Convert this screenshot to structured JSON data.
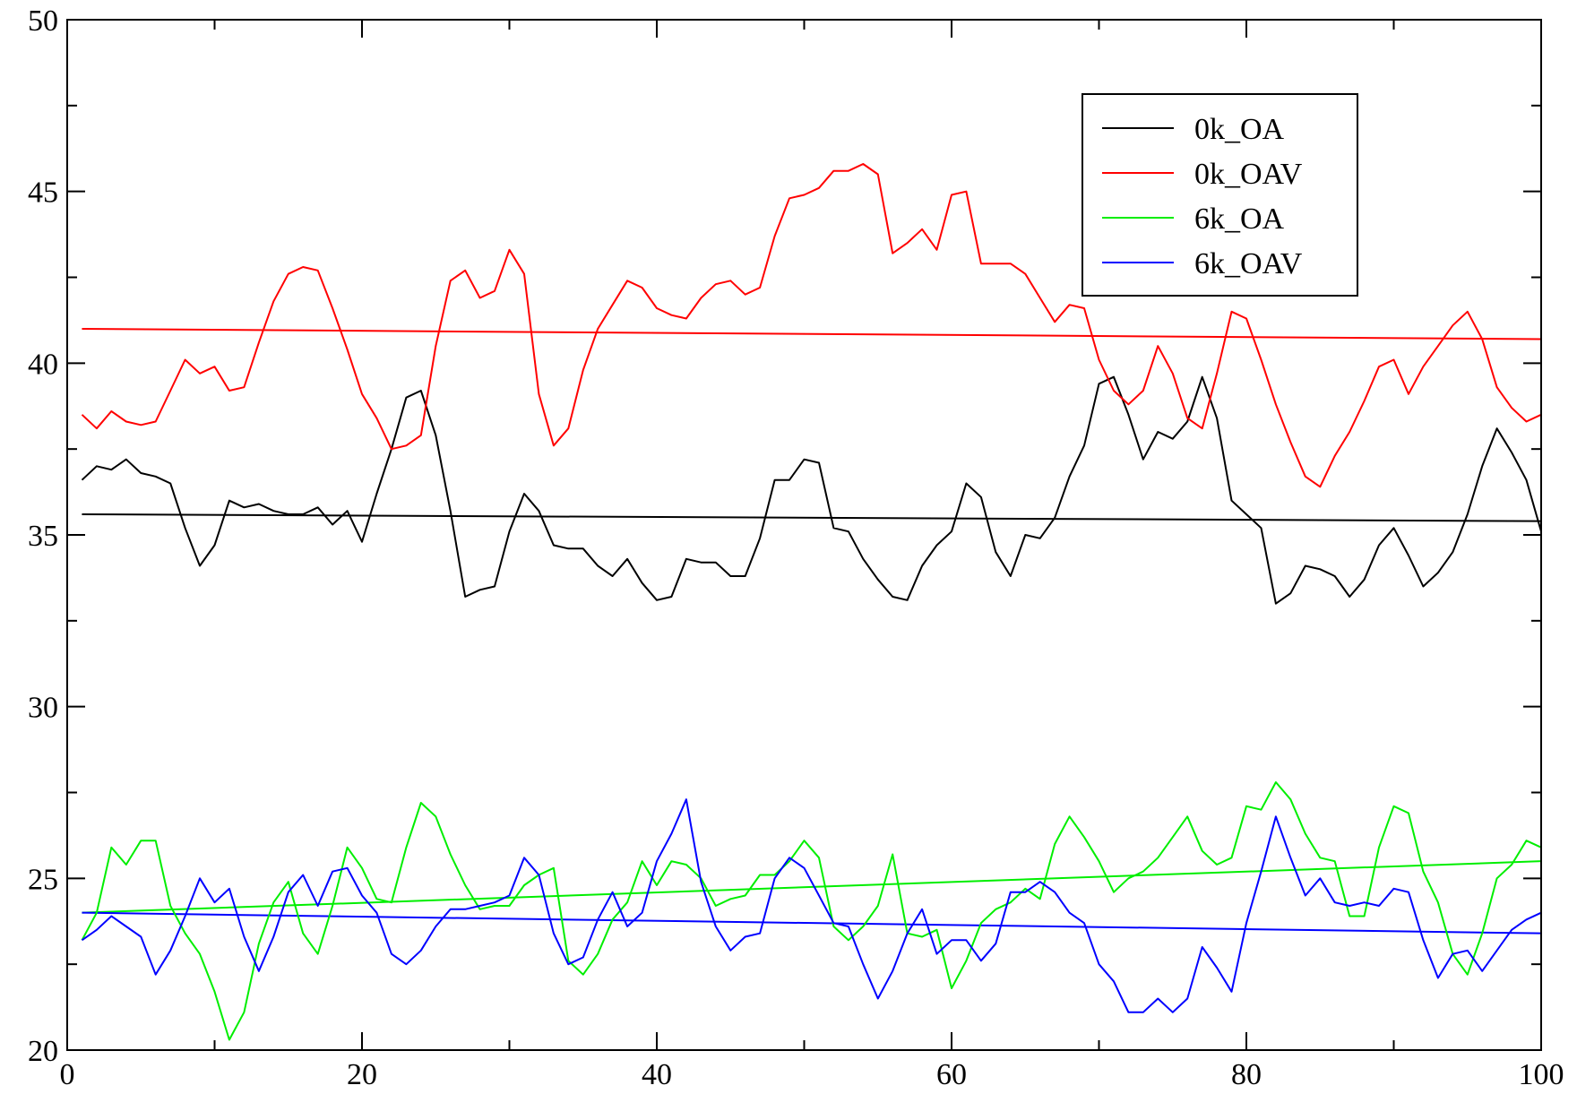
{
  "chart_data": {
    "type": "line",
    "title": "",
    "xlabel": "",
    "ylabel": "",
    "xlim": [
      0,
      100
    ],
    "ylim": [
      20,
      50
    ],
    "x_ticks": [
      0,
      20,
      40,
      60,
      80,
      100
    ],
    "x_tick_labels": [
      "0",
      "20",
      "40",
      "60",
      "80",
      "100"
    ],
    "y_ticks": [
      20,
      25,
      30,
      35,
      40,
      45,
      50
    ],
    "y_tick_labels": [
      "20",
      "25",
      "30",
      "35",
      "40",
      "45",
      "50"
    ],
    "x_minor_step": 10,
    "y_minor_step": 2.5,
    "grid": false,
    "legend_position": "top-right",
    "x": [
      1,
      2,
      3,
      4,
      5,
      6,
      7,
      8,
      9,
      10,
      11,
      12,
      13,
      14,
      15,
      16,
      17,
      18,
      19,
      20,
      21,
      22,
      23,
      24,
      25,
      26,
      27,
      28,
      29,
      30,
      31,
      32,
      33,
      34,
      35,
      36,
      37,
      38,
      39,
      40,
      41,
      42,
      43,
      44,
      45,
      46,
      47,
      48,
      49,
      50,
      51,
      52,
      53,
      54,
      55,
      56,
      57,
      58,
      59,
      60,
      61,
      62,
      63,
      64,
      65,
      66,
      67,
      68,
      69,
      70,
      71,
      72,
      73,
      74,
      75,
      76,
      77,
      78,
      79,
      80,
      81,
      82,
      83,
      84,
      85,
      86,
      87,
      88,
      89,
      90,
      91,
      92,
      93,
      94,
      95,
      96,
      97,
      98,
      99,
      100
    ],
    "series": [
      {
        "name": "0k_OA",
        "color": "#000000",
        "values": [
          36.6,
          37.0,
          36.9,
          37.2,
          36.8,
          36.7,
          36.5,
          35.2,
          34.1,
          34.7,
          36.0,
          35.8,
          35.9,
          35.7,
          35.6,
          35.6,
          35.8,
          35.3,
          35.7,
          34.8,
          36.2,
          37.5,
          39.0,
          39.2,
          37.9,
          35.7,
          33.2,
          33.4,
          33.5,
          35.1,
          36.2,
          35.7,
          34.7,
          34.6,
          34.6,
          34.1,
          33.8,
          34.3,
          33.6,
          33.1,
          33.2,
          34.3,
          34.2,
          34.2,
          33.8,
          33.8,
          34.9,
          36.6,
          36.6,
          37.2,
          37.1,
          35.2,
          35.1,
          34.3,
          33.7,
          33.2,
          33.1,
          34.1,
          34.7,
          35.1,
          36.5,
          36.1,
          34.5,
          33.8,
          35.0,
          34.9,
          35.5,
          36.7,
          37.6,
          39.4,
          39.6,
          38.5,
          37.2,
          38.0,
          37.8,
          38.3,
          39.6,
          38.4,
          36.0,
          35.6,
          35.2,
          33.0,
          33.3,
          34.1,
          34.0,
          33.8,
          33.2,
          33.7,
          34.7,
          35.2,
          34.4,
          33.5,
          33.9,
          34.5,
          35.6,
          37.0,
          38.1,
          37.4,
          36.6,
          35.1
        ]
      },
      {
        "name": "0k_OAV",
        "color": "#ff0000",
        "values": [
          38.5,
          38.1,
          38.6,
          38.3,
          38.2,
          38.3,
          39.2,
          40.1,
          39.7,
          39.9,
          39.2,
          39.3,
          40.6,
          41.8,
          42.6,
          42.8,
          42.7,
          41.6,
          40.4,
          39.1,
          38.4,
          37.5,
          37.6,
          37.9,
          40.5,
          42.4,
          42.7,
          41.9,
          42.1,
          43.3,
          42.6,
          39.1,
          37.6,
          38.1,
          39.8,
          41.0,
          41.7,
          42.4,
          42.2,
          41.6,
          41.4,
          41.3,
          41.9,
          42.3,
          42.4,
          42.0,
          42.2,
          43.7,
          44.8,
          44.9,
          45.1,
          45.6,
          45.6,
          45.8,
          45.5,
          43.2,
          43.5,
          43.9,
          43.3,
          44.9,
          45.0,
          42.9,
          42.9,
          42.9,
          42.6,
          41.9,
          41.2,
          41.7,
          41.6,
          40.1,
          39.2,
          38.8,
          39.2,
          40.5,
          39.7,
          38.4,
          38.1,
          39.7,
          41.5,
          41.3,
          40.1,
          38.8,
          37.7,
          36.7,
          36.4,
          37.3,
          38.0,
          38.9,
          39.9,
          40.1,
          39.1,
          39.9,
          40.5,
          41.1,
          41.5,
          40.7,
          39.3,
          38.7,
          38.3,
          38.5
        ]
      },
      {
        "name": "6k_OA",
        "color": "#00ee00",
        "values": [
          23.2,
          24.0,
          25.9,
          25.4,
          26.1,
          26.1,
          24.2,
          23.4,
          22.8,
          21.7,
          20.3,
          21.1,
          23.1,
          24.3,
          24.9,
          23.4,
          22.8,
          24.2,
          25.9,
          25.3,
          24.4,
          24.3,
          25.9,
          27.2,
          26.8,
          25.7,
          24.8,
          24.1,
          24.2,
          24.2,
          24.8,
          25.1,
          25.3,
          22.6,
          22.2,
          22.8,
          23.8,
          24.3,
          25.5,
          24.8,
          25.5,
          25.4,
          25.0,
          24.2,
          24.4,
          24.5,
          25.1,
          25.1,
          25.5,
          26.1,
          25.6,
          23.6,
          23.2,
          23.6,
          24.2,
          25.7,
          23.4,
          23.3,
          23.5,
          21.8,
          22.6,
          23.7,
          24.1,
          24.3,
          24.7,
          24.4,
          26.0,
          26.8,
          26.2,
          25.5,
          24.6,
          25.0,
          25.2,
          25.6,
          26.2,
          26.8,
          25.8,
          25.4,
          25.6,
          27.1,
          27.0,
          27.8,
          27.3,
          26.3,
          25.6,
          25.5,
          23.9,
          23.9,
          25.9,
          27.1,
          26.9,
          25.2,
          24.3,
          22.8,
          22.2,
          23.4,
          25.0,
          25.4,
          26.1,
          25.9
        ]
      },
      {
        "name": "6k_OAV",
        "color": "#0000ff",
        "values": [
          23.2,
          23.5,
          23.9,
          23.6,
          23.3,
          22.2,
          22.9,
          23.9,
          25.0,
          24.3,
          24.7,
          23.3,
          22.3,
          23.3,
          24.6,
          25.1,
          24.2,
          25.2,
          25.3,
          24.5,
          24.0,
          22.8,
          22.5,
          22.9,
          23.6,
          24.1,
          24.1,
          24.2,
          24.3,
          24.5,
          25.6,
          25.1,
          23.4,
          22.5,
          22.7,
          23.8,
          24.6,
          23.6,
          24.0,
          25.5,
          26.3,
          27.3,
          24.9,
          23.6,
          22.9,
          23.3,
          23.4,
          25.0,
          25.6,
          25.3,
          24.5,
          23.7,
          23.6,
          22.5,
          21.5,
          22.3,
          23.4,
          24.1,
          22.8,
          23.2,
          23.2,
          22.6,
          23.1,
          24.6,
          24.6,
          24.9,
          24.6,
          24.0,
          23.7,
          22.5,
          22.0,
          21.1,
          21.1,
          21.5,
          21.1,
          21.5,
          23.0,
          22.4,
          21.7,
          23.7,
          25.2,
          26.8,
          25.6,
          24.5,
          25.0,
          24.3,
          24.2,
          24.3,
          24.2,
          24.7,
          24.6,
          23.2,
          22.1,
          22.8,
          22.9,
          22.3,
          22.9,
          23.5,
          23.8,
          24.0
        ]
      }
    ],
    "trend_lines": [
      {
        "series": "0k_OA",
        "color": "#000000",
        "x": [
          1,
          100
        ],
        "y": [
          35.6,
          35.4
        ]
      },
      {
        "series": "0k_OAV",
        "color": "#ff0000",
        "x": [
          1,
          100
        ],
        "y": [
          41.0,
          40.7
        ]
      },
      {
        "series": "6k_OA",
        "color": "#00ee00",
        "x": [
          1,
          100
        ],
        "y": [
          24.0,
          25.5
        ]
      },
      {
        "series": "6k_OAV",
        "color": "#0000ff",
        "x": [
          1,
          100
        ],
        "y": [
          24.0,
          23.4
        ]
      }
    ]
  }
}
